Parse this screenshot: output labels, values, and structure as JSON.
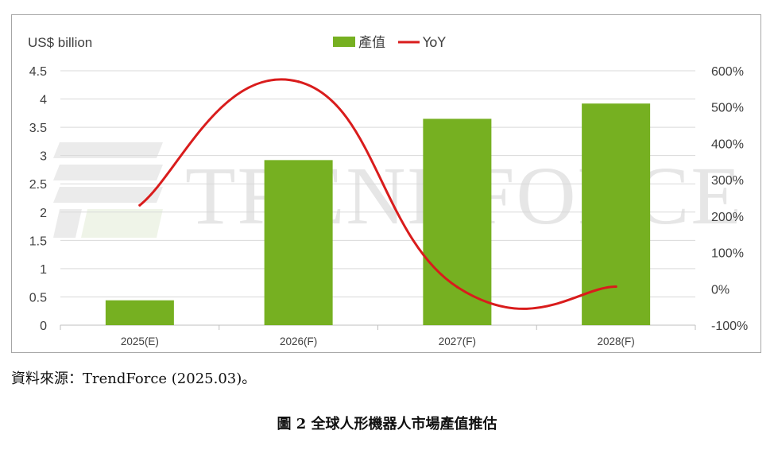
{
  "chart_data": {
    "type": "bar",
    "categories": [
      "2025(E)",
      "2026(F)",
      "2027(F)",
      "2028(F)"
    ],
    "series": [
      {
        "name": "產值",
        "type": "bar",
        "axis": "left",
        "color": "#76b021",
        "values": [
          0.44,
          2.92,
          3.65,
          3.92
        ]
      },
      {
        "name": "YoY",
        "type": "line",
        "axis": "right",
        "color": "#d91c1c",
        "values": [
          2.3,
          5.7,
          0.05,
          0.06
        ]
      }
    ],
    "ylabel": "US$ billion",
    "ylim": [
      0,
      4.5
    ],
    "yticks": [
      "0",
      "0.5",
      "1",
      "1.5",
      "2",
      "2.5",
      "3",
      "3.5",
      "4",
      "4.5"
    ],
    "y2lim": [
      -1,
      6
    ],
    "y2ticks": [
      "-100%",
      "0%",
      "100%",
      "200%",
      "300%",
      "400%",
      "500%",
      "600%"
    ],
    "grid": true,
    "legend": "top-center"
  },
  "watermark": "TRENDFORCE",
  "source_note": "資料來源：TrendForce (2025.03)。",
  "caption": "圖 2 全球人形機器人市場產值推估"
}
